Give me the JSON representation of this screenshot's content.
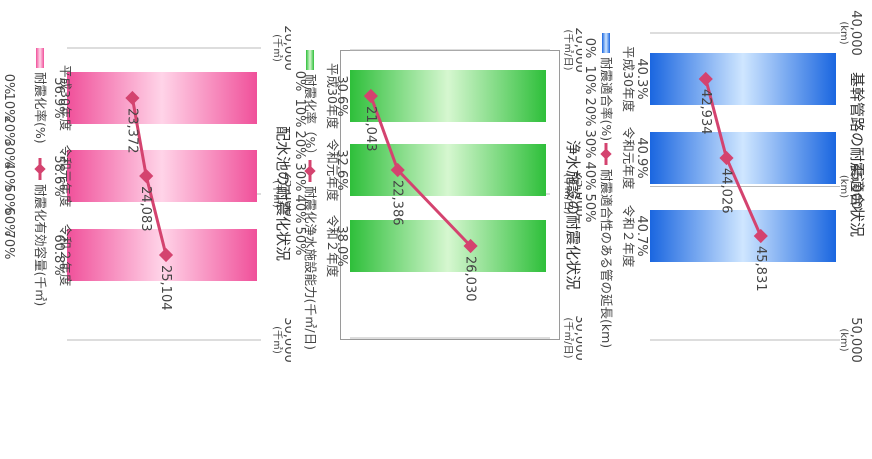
{
  "chart_data": [
    {
      "type": "bar+line",
      "title": "基幹管路の耐震適合状況",
      "categories": [
        "平成30年度",
        "令和元年度",
        "令和２年度"
      ],
      "series": [
        {
          "name": "耐震適合率(%)",
          "kind": "bar",
          "axis": "left",
          "values": [
            40.3,
            40.9,
            40.7
          ],
          "labels": [
            "40.3%",
            "40.9%",
            "40.7%"
          ]
        },
        {
          "name": "耐震適合性のある管の延長(km)",
          "kind": "line",
          "axis": "right",
          "values": [
            42934,
            44026,
            45831
          ],
          "labels": [
            "42,934",
            "44,026",
            "45,831"
          ]
        }
      ],
      "y_left": {
        "min": 0,
        "max": 50,
        "ticks": [
          "50%",
          "40%",
          "30%",
          "20%",
          "10%",
          "0%"
        ]
      },
      "y_right": {
        "min": 40000,
        "max": 50000,
        "ticks": [
          {
            "value": "50,000",
            "unit": "(km)"
          },
          {
            "value": "45,000",
            "unit": "(km)"
          },
          {
            "value": "40,000",
            "unit": "(km)"
          }
        ]
      },
      "bar_colors": [
        "#1a66e0",
        "#cfe6ff"
      ],
      "line_color": "#d4436f",
      "legend": "bottom"
    },
    {
      "type": "bar+line",
      "title": "浄水施設の耐震化状況",
      "categories": [
        "平成30年度",
        "令和元年度",
        "令和２年度"
      ],
      "series": [
        {
          "name": "耐震化率（%）",
          "kind": "bar",
          "axis": "left",
          "values": [
            30.6,
            32.6,
            38.0
          ],
          "labels": [
            "30.6%",
            "32.6%",
            "38.0%"
          ]
        },
        {
          "name": "耐震化浄水施設能力(千㎥/日)",
          "kind": "line",
          "axis": "right",
          "values": [
            21043,
            22386,
            26030
          ],
          "labels": [
            "21,043",
            "22,386",
            "26,030"
          ]
        }
      ],
      "y_left": {
        "min": 0,
        "max": 50,
        "ticks": [
          "50%",
          "40%",
          "30%",
          "20%",
          "10%",
          "0%"
        ]
      },
      "y_right": {
        "min": 20000,
        "max": 30000,
        "ticks": [
          {
            "value": "30,000",
            "unit": "(千㎥/日)"
          },
          {
            "value": "25,000",
            "unit": "(千㎥/日)"
          },
          {
            "value": "20,000",
            "unit": "(千㎥/日)"
          }
        ]
      },
      "bar_colors": [
        "#2ebf3a",
        "#d6f7d0"
      ],
      "line_color": "#d4436f",
      "legend": "bottom"
    },
    {
      "type": "bar+line",
      "title": "配水池の耐震化状況",
      "categories": [
        "平成30年度",
        "令和元年度",
        "令和２年度"
      ],
      "series": [
        {
          "name": "耐震化率(%)",
          "kind": "bar",
          "axis": "left",
          "values": [
            56.9,
            58.6,
            60.8
          ],
          "labels": [
            "56.9%",
            "58.6%",
            "60.8%"
          ]
        },
        {
          "name": "耐震化有効容量(千㎥)",
          "kind": "line",
          "axis": "right",
          "values": [
            23372,
            24083,
            25104
          ],
          "labels": [
            "23,372",
            "24,083",
            "25,104"
          ]
        }
      ],
      "y_left": {
        "min": 0,
        "max": 70,
        "ticks": [
          "70%",
          "60%",
          "50%",
          "40%",
          "30%",
          "20%",
          "10%",
          "0%"
        ]
      },
      "y_right": {
        "min": 20000,
        "max": 30000,
        "ticks": [
          {
            "value": "30,000",
            "unit": "(千㎥)"
          },
          {
            "value": "25,000",
            "unit": "(千㎥)"
          },
          {
            "value": "20,000",
            "unit": "(千㎥)"
          }
        ]
      },
      "bar_colors": [
        "#f0509a",
        "#ffd4e8"
      ],
      "line_color": "#d4436f",
      "legend": "bottom"
    }
  ]
}
